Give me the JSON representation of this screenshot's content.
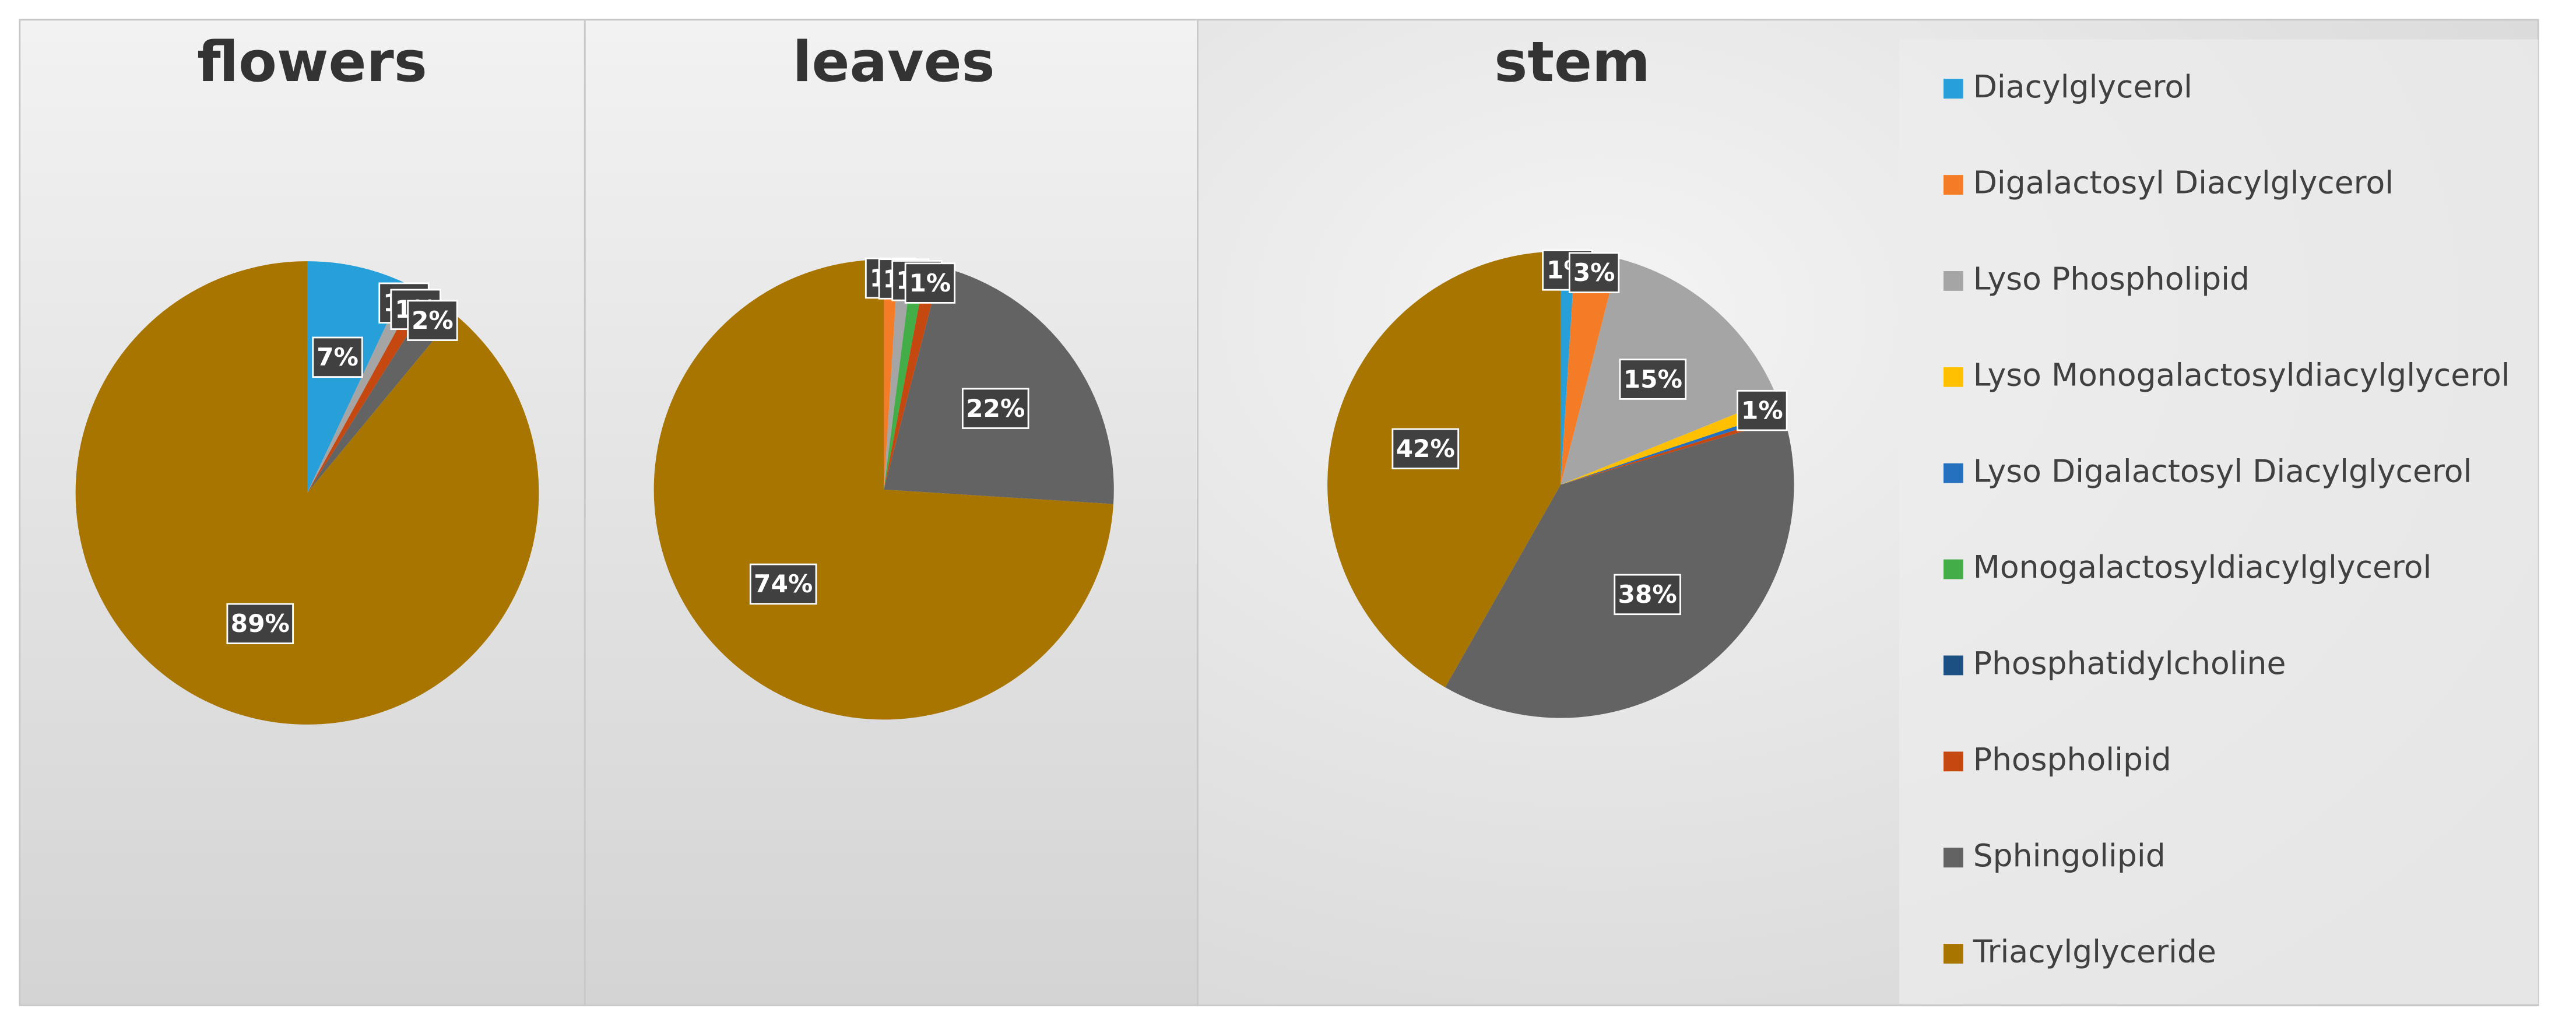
{
  "legend": {
    "names": [
      "Diacylglycerol",
      "Digalactosyl Diacylglycerol",
      "Lyso Phospholipid",
      "Lyso Monogalactosyldiacylglycerol",
      "Lyso Digalactosyl Diacylglycerol",
      "Monogalactosyldiacylglycerol",
      "Phosphatidylcholine",
      "Phospholipid",
      "Sphingolipid",
      "Triacylglyceride"
    ],
    "colors": [
      "#279fd9",
      "#f47c26",
      "#a5a5a5",
      "#fec000",
      "#2571c0",
      "#43ad48",
      "#1c4f82",
      "#c4480f",
      "#636363",
      "#a87501"
    ]
  },
  "chart_data": [
    {
      "type": "pie",
      "title": "flowers",
      "values": [
        7,
        0,
        1,
        0,
        0,
        0,
        0,
        1,
        2,
        89
      ],
      "value_labels": [
        "7%",
        null,
        "1%",
        null,
        null,
        null,
        null,
        "1%",
        "2%",
        "89%"
      ]
    },
    {
      "type": "pie",
      "title": "leaves",
      "values": [
        0,
        1,
        1,
        0,
        0,
        1,
        0,
        1,
        22,
        74
      ],
      "value_labels": [
        null,
        "1%",
        "1%",
        null,
        null,
        "1%",
        null,
        "1%",
        "22%",
        "74%"
      ]
    },
    {
      "type": "pie",
      "title": "stem",
      "values": [
        1,
        3,
        15,
        1,
        0.3,
        0,
        0,
        0.3,
        38,
        42
      ],
      "value_labels": [
        "1%",
        "3%",
        "15%",
        "1%",
        null,
        null,
        null,
        null,
        "38%",
        "42%"
      ]
    }
  ]
}
